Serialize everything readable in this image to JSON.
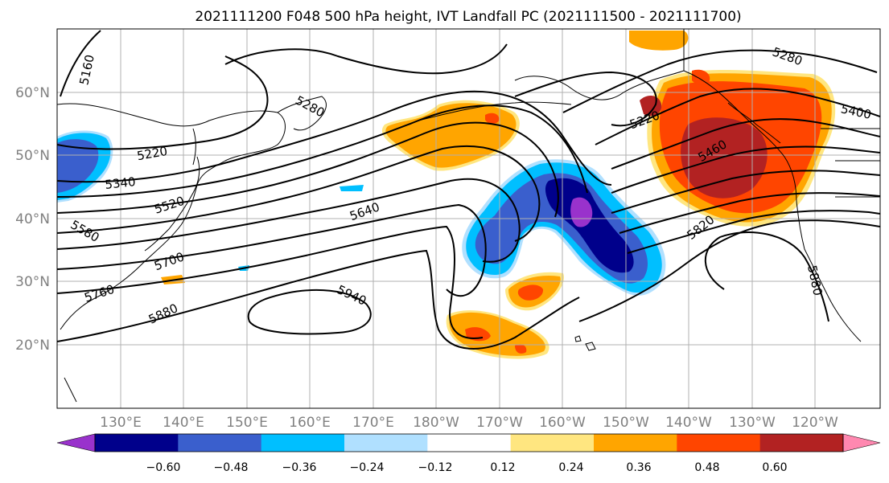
{
  "title": "2021111200 F048 500 hPa height, IVT Landfall PC (2021111500 - 2021111700)",
  "map": {
    "lat_ticks": [
      "20°N",
      "30°N",
      "40°N",
      "50°N",
      "60°N"
    ],
    "lon_ticks": [
      "130°E",
      "140°E",
      "150°E",
      "160°E",
      "170°E",
      "180°W",
      "170°W",
      "160°W",
      "150°W",
      "140°W",
      "130°W",
      "120°W"
    ],
    "contour_labels": [
      "5160",
      "5280",
      "5220",
      "5340",
      "5520",
      "5580",
      "5640",
      "5700",
      "5760",
      "5880",
      "5940",
      "5220",
      "5280",
      "5400",
      "5460",
      "5820",
      "5880"
    ]
  },
  "colorbar": {
    "ticks": [
      "−0.60",
      "−0.48",
      "−0.36",
      "−0.24",
      "−0.12",
      "0.12",
      "0.24",
      "0.36",
      "0.48",
      "0.60"
    ],
    "colors": [
      "#9932cc",
      "#00008b",
      "#3a5fcd",
      "#00bfff",
      "#b0e0ff",
      "#ffffff",
      "#ffe680",
      "#ffa500",
      "#ff4500",
      "#b22222",
      "#ff88b0"
    ]
  }
}
